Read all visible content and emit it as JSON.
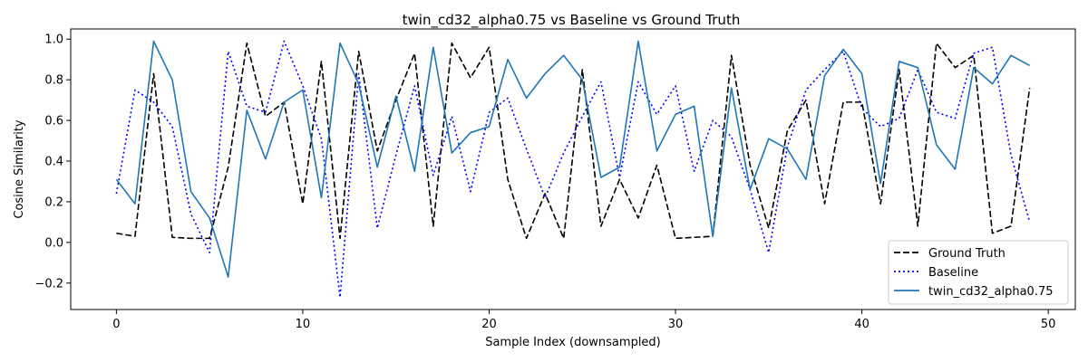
{
  "chart_data": {
    "type": "line",
    "title": "twin_cd32_alpha0.75 vs Baseline vs Ground Truth",
    "xlabel": "Sample Index (downsampled)",
    "ylabel": "Cosine Similarity",
    "xlim": [
      -2.45,
      51.45
    ],
    "ylim": [
      -0.33,
      1.05
    ],
    "xticks": [
      0,
      10,
      20,
      30,
      40,
      50
    ],
    "xtick_labels": [
      "0",
      "10",
      "20",
      "30",
      "40",
      "50"
    ],
    "yticks": [
      -0.2,
      0.0,
      0.2,
      0.4,
      0.6,
      0.8,
      1.0
    ],
    "ytick_labels": [
      "−0.2",
      "0.0",
      "0.2",
      "0.4",
      "0.6",
      "0.8",
      "1.0"
    ],
    "grid": false,
    "legend_position": "lower-right",
    "x": [
      0,
      1,
      2,
      3,
      4,
      5,
      6,
      7,
      8,
      9,
      10,
      11,
      12,
      13,
      14,
      15,
      16,
      17,
      18,
      19,
      20,
      21,
      22,
      23,
      24,
      25,
      26,
      27,
      28,
      29,
      30,
      31,
      32,
      33,
      34,
      35,
      36,
      37,
      38,
      39,
      40,
      41,
      42,
      43,
      44,
      45,
      46,
      47,
      48,
      49
    ],
    "series": [
      {
        "name": "Ground Truth",
        "color": "#000000",
        "style": "dashed",
        "values": [
          0.045,
          0.03,
          0.83,
          0.025,
          0.02,
          0.02,
          0.37,
          0.98,
          0.62,
          0.69,
          0.19,
          0.89,
          0.02,
          0.94,
          0.45,
          0.7,
          0.93,
          0.08,
          0.98,
          0.81,
          0.96,
          0.31,
          0.02,
          0.24,
          0.02,
          0.85,
          0.08,
          0.31,
          0.12,
          0.38,
          0.02,
          0.025,
          0.03,
          0.92,
          0.38,
          0.07,
          0.55,
          0.7,
          0.19,
          0.69,
          0.69,
          0.19,
          0.85,
          0.08,
          0.98,
          0.86,
          0.92,
          0.045,
          0.08,
          0.76
        ]
      },
      {
        "name": "Baseline",
        "color": "#0000ff",
        "style": "dotted",
        "values": [
          0.24,
          0.75,
          0.69,
          0.57,
          0.14,
          -0.05,
          0.94,
          0.67,
          0.64,
          0.99,
          0.77,
          0.51,
          -0.27,
          0.83,
          0.07,
          0.43,
          0.77,
          0.33,
          0.62,
          0.25,
          0.64,
          0.71,
          0.46,
          0.22,
          0.44,
          0.62,
          0.79,
          0.32,
          0.79,
          0.63,
          0.77,
          0.35,
          0.6,
          0.52,
          0.26,
          -0.05,
          0.47,
          0.75,
          0.85,
          0.94,
          0.66,
          0.57,
          0.61,
          0.85,
          0.64,
          0.61,
          0.93,
          0.96,
          0.43,
          0.1
        ]
      },
      {
        "name": "twin_cd32_alpha0.75",
        "color": "#1f77b4",
        "style": "solid",
        "values": [
          0.31,
          0.19,
          0.99,
          0.8,
          0.25,
          0.12,
          -0.17,
          0.65,
          0.41,
          0.69,
          0.75,
          0.22,
          0.98,
          0.78,
          0.37,
          0.72,
          0.35,
          0.96,
          0.44,
          0.54,
          0.57,
          0.9,
          0.71,
          0.83,
          0.92,
          0.8,
          0.32,
          0.37,
          0.99,
          0.45,
          0.63,
          0.67,
          0.03,
          0.76,
          0.26,
          0.51,
          0.46,
          0.31,
          0.82,
          0.95,
          0.83,
          0.29,
          0.89,
          0.86,
          0.48,
          0.36,
          0.86,
          0.78,
          0.92,
          0.87
        ]
      }
    ]
  }
}
